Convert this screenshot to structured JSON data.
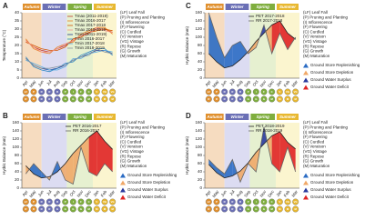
{
  "chart_data": [
    {
      "type": "line",
      "label": "A",
      "ylabel": "Temperature (°C)",
      "seasons": [
        "Autumn",
        "Winter",
        "Spring",
        "Summer"
      ],
      "categories": [
        "Apr",
        "May",
        "Jun",
        "Jul",
        "Aug",
        "Sep",
        "Oct",
        "Nov",
        "Dec",
        "Jan",
        "Feb",
        "Mar"
      ],
      "ylim": [
        0,
        40
      ],
      "yticks": [
        0,
        5,
        10,
        15,
        20,
        25,
        30,
        35,
        40
      ],
      "series": [
        {
          "name": "Tmax (2011-2019)",
          "color": "#c0392b",
          "values": [
            23,
            19,
            17,
            16,
            18,
            20,
            23,
            26,
            28,
            30,
            30,
            28
          ]
        },
        {
          "name": "Tmax 2016-2017",
          "color": "#e67e22",
          "values": [
            24,
            18,
            16,
            15,
            19,
            21,
            22,
            27,
            29,
            31,
            31,
            27
          ]
        },
        {
          "name": "Tmax 2017-2018",
          "color": "#d35400",
          "values": [
            22,
            20,
            18,
            17,
            17,
            19,
            24,
            25,
            28,
            29,
            30,
            29
          ]
        },
        {
          "name": "Tmax 2018-2019",
          "color": "#f1948a",
          "values": [
            23,
            19,
            16,
            16,
            18,
            21,
            23,
            26,
            27,
            31,
            29,
            28
          ]
        },
        {
          "name": "Tmin (2011-2019)",
          "color": "#1f3a93",
          "values": [
            12,
            8,
            6,
            5,
            6,
            8,
            11,
            13,
            15,
            17,
            17,
            15
          ]
        },
        {
          "name": "Tmin 2016-2017",
          "color": "#2e86c1",
          "values": [
            13,
            7,
            5,
            4,
            6,
            9,
            10,
            14,
            16,
            18,
            18,
            14
          ]
        },
        {
          "name": "Tmin 2017-2018",
          "color": "#5dade2",
          "values": [
            11,
            9,
            7,
            5,
            5,
            7,
            12,
            12,
            15,
            16,
            17,
            16
          ]
        },
        {
          "name": "Tmin 2018-2019",
          "color": "#85929e",
          "values": [
            12,
            8,
            6,
            6,
            7,
            8,
            11,
            13,
            14,
            18,
            16,
            15
          ]
        }
      ]
    },
    {
      "type": "area",
      "label": "B",
      "ylabel": "Hydric Balance (mm)",
      "seasons": [
        "Autumn",
        "Winter",
        "Spring",
        "Summer"
      ],
      "categories": [
        "Apr",
        "May",
        "Jun",
        "Jul",
        "Aug",
        "Sep",
        "Oct",
        "Nov",
        "Dec",
        "Jan",
        "Feb",
        "Mar"
      ],
      "ylim": [
        0,
        160
      ],
      "yticks": [
        0,
        20,
        40,
        60,
        80,
        100,
        120,
        140,
        160
      ],
      "series": [
        {
          "name": "PET 2016-2017",
          "color": "#222222",
          "values": [
            55,
            35,
            25,
            28,
            40,
            60,
            85,
            105,
            125,
            140,
            115,
            95
          ]
        },
        {
          "name": "RR 2016-2017",
          "color": "#666666",
          "values": [
            35,
            60,
            40,
            20,
            65,
            20,
            10,
            100,
            40,
            30,
            60,
            40
          ]
        }
      ]
    },
    {
      "type": "area",
      "label": "C",
      "ylabel": "Hydric Balance (mm)",
      "seasons": [
        "Autumn",
        "Winter",
        "Spring",
        "Summer"
      ],
      "categories": [
        "Apr",
        "May",
        "Jun",
        "Jul",
        "Aug",
        "Sep",
        "Oct",
        "Nov",
        "Dec",
        "Jan",
        "Feb",
        "Mar"
      ],
      "ylim": [
        0,
        160
      ],
      "yticks": [
        0,
        20,
        40,
        60,
        80,
        100,
        120,
        140,
        160
      ],
      "series": [
        {
          "name": "PET 2017-2018",
          "color": "#222222",
          "values": [
            60,
            40,
            25,
            30,
            45,
            65,
            90,
            110,
            130,
            140,
            110,
            95
          ]
        },
        {
          "name": "RR 2017-2018",
          "color": "#666666",
          "values": [
            160,
            100,
            50,
            80,
            90,
            60,
            75,
            130,
            60,
            110,
            70,
            100
          ]
        }
      ]
    },
    {
      "type": "area",
      "label": "D",
      "ylabel": "Hydric Balance (mm)",
      "seasons": [
        "Autumn",
        "Winter",
        "Spring",
        "Summer"
      ],
      "categories": [
        "Apr",
        "May",
        "Jun",
        "Jul",
        "Aug",
        "Sep",
        "Oct",
        "Nov",
        "Dec",
        "Jan",
        "Feb",
        "Mar"
      ],
      "ylim": [
        0,
        160
      ],
      "yticks": [
        0,
        20,
        40,
        60,
        80,
        100,
        120,
        140,
        160
      ],
      "series": [
        {
          "name": "PET 2018-2019",
          "color": "#222222",
          "values": [
            58,
            38,
            25,
            30,
            42,
            62,
            88,
            108,
            128,
            138,
            112,
            96
          ]
        },
        {
          "name": "RR 2018-2019",
          "color": "#666666",
          "values": [
            70,
            50,
            35,
            70,
            15,
            60,
            40,
            150,
            60,
            40,
            100,
            40
          ]
        }
      ]
    }
  ],
  "phenology_rows": [
    [
      "LF",
      "P",
      "R",
      "R",
      "R",
      "P",
      "I",
      "F",
      "C",
      "V",
      "VG",
      "VG"
    ],
    [
      "R",
      "R",
      "R",
      "R",
      "G",
      "G",
      "G",
      "G",
      "M",
      "M",
      "M",
      "M"
    ]
  ],
  "key_stages": [
    "(LF) Leaf Fall",
    "(P) Pruning and Planting",
    "(I) Inflorescence",
    "(F) Flowering",
    "(C) Curdled",
    "(V) Veraison",
    "(VG) Vintage",
    "(R) Repose",
    "(G) Growth",
    "(M) Maturation"
  ],
  "key_balance": [
    "Ground Store Replenishing",
    "Ground Store Depletion",
    "Ground Water Surplus",
    "Ground Water Deficit"
  ],
  "area_colors": [
    "#2b6cc4",
    "#f0a868",
    "#2a3a9e",
    "#e02424"
  ],
  "season_colors": [
    "#f6dcc0",
    "#dcdcf2",
    "#e6f0d0",
    "#fbf5cf"
  ],
  "season_label_colors": [
    "#e0902e",
    "#6a6fb5",
    "#7fae3e",
    "#e8b830"
  ]
}
